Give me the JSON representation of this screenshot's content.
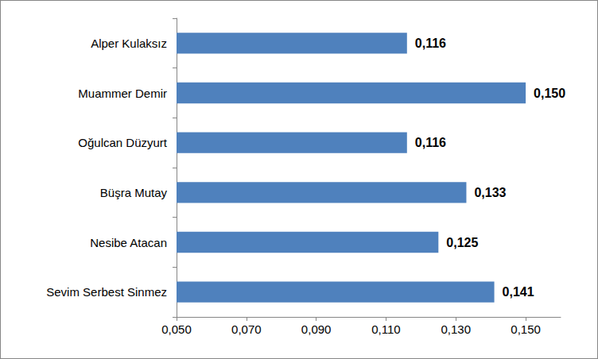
{
  "chart_data": {
    "type": "bar",
    "orientation": "horizontal",
    "categories": [
      "Alper Kulaksız",
      "Muammer Demir",
      "Oğulcan Düzyurt",
      "Büşra Mutay",
      "Nesibe Atacan",
      "Sevim Serbest Sinmez"
    ],
    "values": [
      0.116,
      0.15,
      0.116,
      0.133,
      0.125,
      0.141
    ],
    "value_labels": [
      "0,116",
      "0,150",
      "0,116",
      "0,133",
      "0,125",
      "0,141"
    ],
    "color": "#4f81bd",
    "xlim": [
      0.05,
      0.16
    ],
    "xticks": [
      {
        "value": 0.05,
        "label": "0,050"
      },
      {
        "value": 0.07,
        "label": "0,070"
      },
      {
        "value": 0.09,
        "label": "0,090"
      },
      {
        "value": 0.11,
        "label": "0,110"
      },
      {
        "value": 0.13,
        "label": "0,130"
      },
      {
        "value": 0.15,
        "label": "0,150"
      }
    ],
    "grid": false,
    "data_labels": true
  }
}
